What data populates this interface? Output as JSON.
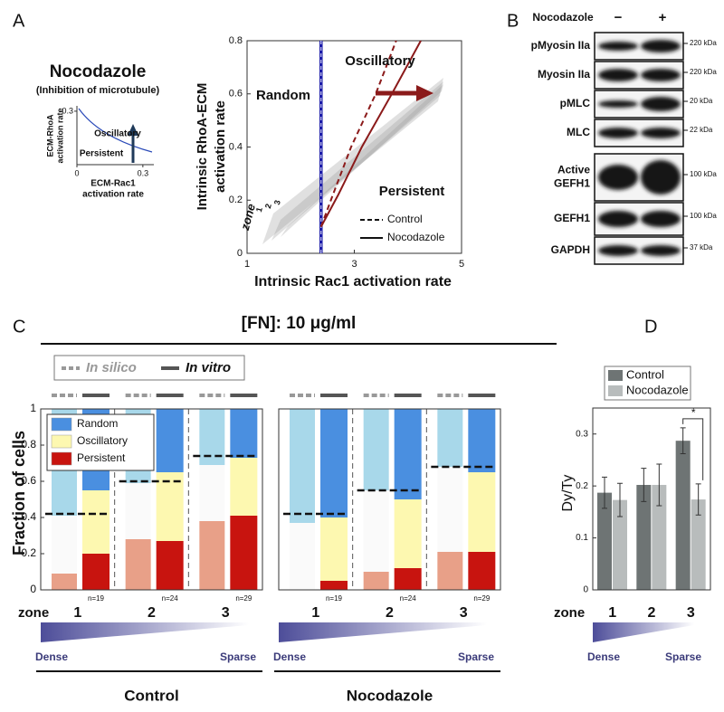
{
  "panel_labels": [
    "A",
    "B",
    "C",
    "D"
  ],
  "panel_a": {
    "title": "Nocodazole",
    "subtitle": "(Inhibition of microtubule)",
    "inset": {
      "ylabel": [
        "ECM-RhoA",
        "activation rate"
      ],
      "xlabel": [
        "ECM-Rac1",
        "activation rate"
      ],
      "xlim": [
        0,
        0.35
      ],
      "ylim": [
        0,
        0.33
      ],
      "xticks": [
        0,
        0.3
      ],
      "yticks": [
        0.3
      ],
      "labels": [
        "Oscillatory",
        "Persistent"
      ]
    },
    "zone_label": "zone",
    "zones": [
      "1",
      "2",
      "3"
    ]
  },
  "panel_b": {
    "treatment": "Nocodazole",
    "lanes": [
      "−",
      "+"
    ],
    "rows": [
      {
        "label": [
          "pMyosin IIa"
        ],
        "size": "220 kDa"
      },
      {
        "label": [
          "Myosin IIa"
        ],
        "size": "220 kDa"
      },
      {
        "label": [
          "pMLC"
        ],
        "size": "20 kDa"
      },
      {
        "label": [
          "MLC"
        ],
        "size": "22 kDa"
      },
      {
        "label": [
          "Active",
          "GEFH1"
        ],
        "size": "100 kDa"
      },
      {
        "label": [
          "GEFH1"
        ],
        "size": "100 kDa"
      },
      {
        "label": [
          "GAPDH"
        ],
        "size": "37 kDa"
      }
    ]
  },
  "panel_c": {
    "title": "[FN]: 10 μg/ml",
    "groups": [
      "In silico",
      "In vitro"
    ],
    "zone_label": "zone",
    "gradient": [
      "Dense",
      "Sparse"
    ]
  },
  "panel_d": {
    "zone_label": "zone",
    "gradient": [
      "Dense",
      "Sparse"
    ],
    "significance": "*"
  },
  "chart_data": [
    {
      "type": "line",
      "xlabel": "Intrinsic Rac1 activation rate",
      "ylabel": [
        "Intrinsic RhoA-ECM",
        "activation rate"
      ],
      "xlim": [
        1,
        5
      ],
      "xticks": [
        1,
        3,
        5
      ],
      "ylim": [
        0,
        0.8
      ],
      "yticks": [
        0,
        0.2,
        0.4,
        0.6,
        0.8
      ],
      "regions": [
        "Random",
        "Oscillatory",
        "Persistent"
      ],
      "boundary": {
        "color": "#1a1aa8",
        "x": [
          2.38,
          2.38
        ],
        "values": [
          0,
          0.8
        ]
      },
      "series": [
        {
          "name": "Control",
          "color": "#8b1a1a",
          "dashed": true,
          "x": [
            2.38,
            2.6,
            2.94,
            3.4,
            3.78
          ],
          "values": [
            0.1,
            0.22,
            0.4,
            0.6,
            0.8
          ]
        },
        {
          "name": "Nocodazole",
          "color": "#8b1a1a",
          "dashed": false,
          "x": [
            2.38,
            2.7,
            3.14,
            3.7,
            4.24
          ],
          "values": [
            0.1,
            0.22,
            0.4,
            0.6,
            0.8
          ]
        }
      ]
    },
    {
      "type": "stacked_bar",
      "title": "Control",
      "ylabel": "Fraction of cells",
      "categories": [
        "1",
        "2",
        "3"
      ],
      "ylim": [
        0,
        1
      ],
      "yticks": [
        0,
        0.2,
        0.4,
        0.6,
        0.8,
        1
      ],
      "n_labels": [
        "n=19",
        "n=24",
        "n=29"
      ],
      "thresholds": [
        0.42,
        0.6,
        0.74
      ],
      "series": [
        {
          "name": "Random",
          "color": "#4a8fe0",
          "light_color": "#a8d8ea",
          "in_silico": [
            0.59,
            0.41,
            0.31
          ],
          "in_vitro": [
            0.45,
            0.35,
            0.27
          ]
        },
        {
          "name": "Oscillatory",
          "color": "#fdf8b0",
          "light_color": "#fafafa",
          "in_silico": [
            0.32,
            0.31,
            0.31
          ],
          "in_vitro": [
            0.35,
            0.38,
            0.32
          ]
        },
        {
          "name": "Persistent",
          "color": "#c8140f",
          "light_color": "#e8a088",
          "in_silico": [
            0.09,
            0.28,
            0.38
          ],
          "in_vitro": [
            0.2,
            0.27,
            0.41
          ]
        }
      ]
    },
    {
      "type": "stacked_bar",
      "title": "Nocodazole",
      "categories": [
        "1",
        "2",
        "3"
      ],
      "ylim": [
        0,
        1
      ],
      "n_labels": [
        "n=19",
        "n=24",
        "n=29"
      ],
      "thresholds": [
        0.42,
        0.55,
        0.68
      ],
      "series": [
        {
          "color": "#4a8fe0",
          "light_color": "#a8d8ea",
          "in_silico": [
            0.63,
            0.45,
            0.32
          ],
          "in_vitro": [
            0.6,
            0.5,
            0.35
          ]
        },
        {
          "color": "#fdf8b0",
          "light_color": "#fafafa",
          "in_silico": [
            0.37,
            0.45,
            0.47
          ],
          "in_vitro": [
            0.35,
            0.38,
            0.44
          ]
        },
        {
          "color": "#c8140f",
          "light_color": "#e8a088",
          "in_silico": [
            0,
            0.1,
            0.21
          ],
          "in_vitro": [
            0.05,
            0.12,
            0.21
          ]
        }
      ]
    },
    {
      "type": "bar",
      "ylabel": "Dy/Ty",
      "categories": [
        "1",
        "2",
        "3"
      ],
      "ylim": [
        0,
        0.35
      ],
      "yticks": [
        0,
        0.1,
        0.2,
        0.3
      ],
      "series": [
        {
          "name": "Control",
          "color": "#6e7474",
          "values": [
            0.187,
            0.202,
            0.287
          ],
          "errors": [
            0.03,
            0.032,
            0.025
          ]
        },
        {
          "name": "Nocodazole",
          "color": "#b8bcbc",
          "values": [
            0.173,
            0.202,
            0.174
          ],
          "errors": [
            0.032,
            0.04,
            0.03
          ]
        }
      ]
    }
  ]
}
